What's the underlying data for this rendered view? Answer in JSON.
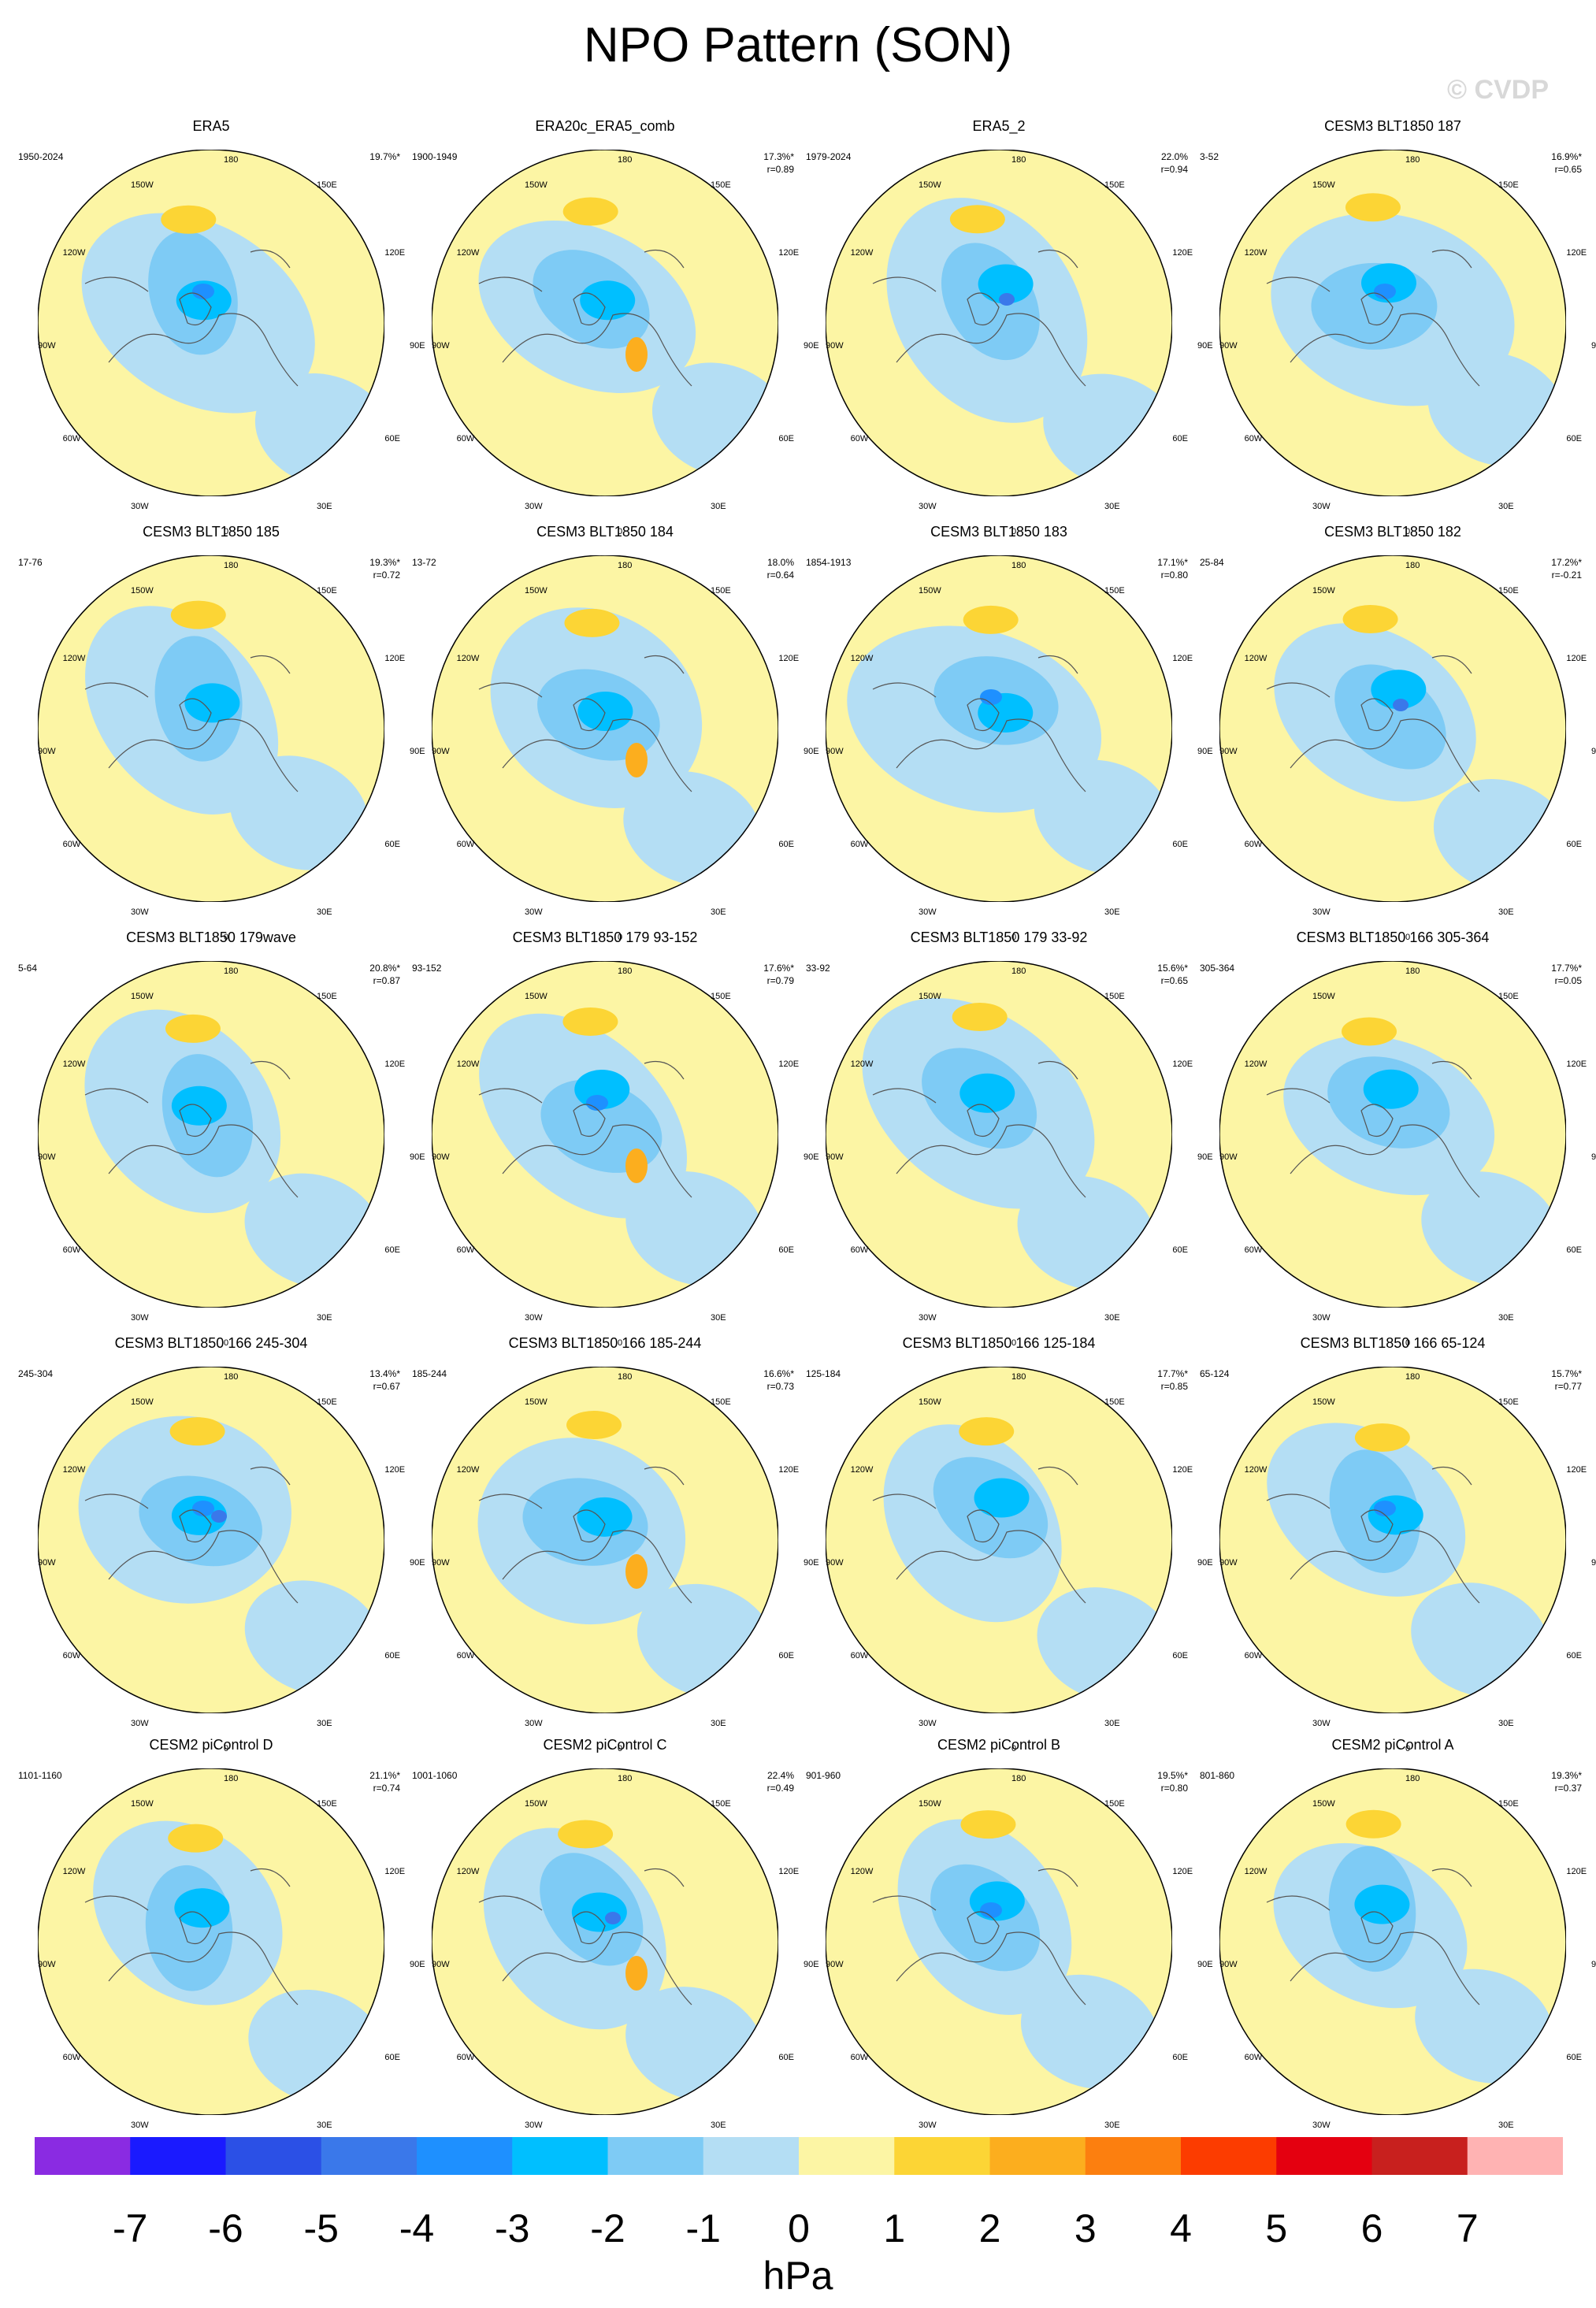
{
  "title": "NPO Pattern (SON)",
  "watermark": "© CVDP",
  "lon_labels": [
    "180",
    "150W",
    "150E",
    "120W",
    "120E",
    "90W",
    "90E",
    "60W",
    "60E",
    "30W",
    "30E",
    "0"
  ],
  "colorbar": {
    "colors": [
      "#8a2be2",
      "#1a1aff",
      "#2b50e6",
      "#3a78ea",
      "#1e90ff",
      "#00bfff",
      "#7ecbf5",
      "#b4def4",
      "#fcf5a4",
      "#fcd535",
      "#fcae1e",
      "#fc7f0f",
      "#fc3c00",
      "#e40010",
      "#c8201e",
      "#ffb3b3"
    ],
    "labels": [
      "-7",
      "-6",
      "-5",
      "-4",
      "-3",
      "-2",
      "-1",
      "0",
      "1",
      "2",
      "3",
      "4",
      "5",
      "6",
      "7"
    ],
    "units": "hPa"
  },
  "chart_data": {
    "type": "heatmap",
    "title": "NPO Pattern (SON)",
    "season": "SON",
    "units": "hPa",
    "levels": [
      -7,
      -6,
      -5,
      -4,
      -3,
      -2,
      -1,
      0,
      1,
      2,
      3,
      4,
      5,
      6,
      7
    ],
    "projection": "north polar stereographic",
    "panels": [
      {
        "name": "ERA5",
        "years": "1950-2024",
        "pct": "19.7%*",
        "r": ""
      },
      {
        "name": "ERA20c_ERA5_comb",
        "years": "1900-1949",
        "pct": "17.3%*",
        "r": "r=0.89"
      },
      {
        "name": "ERA5_2",
        "years": "1979-2024",
        "pct": "22.0%",
        "r": "r=0.94"
      },
      {
        "name": "CESM3 BLT1850 187",
        "years": "3-52",
        "pct": "16.9%*",
        "r": "r=0.65"
      },
      {
        "name": "CESM3 BLT1850 185",
        "years": "17-76",
        "pct": "19.3%*",
        "r": "r=0.72"
      },
      {
        "name": "CESM3 BLT1850 184",
        "years": "13-72",
        "pct": "18.0%",
        "r": "r=0.64"
      },
      {
        "name": "CESM3 BLT1850 183",
        "years": "1854-1913",
        "pct": "17.1%*",
        "r": "r=0.80"
      },
      {
        "name": "CESM3 BLT1850 182",
        "years": "25-84",
        "pct": "17.2%*",
        "r": "r=-0.21"
      },
      {
        "name": "CESM3 BLT1850 179wave",
        "years": "5-64",
        "pct": "20.8%*",
        "r": "r=0.87"
      },
      {
        "name": "CESM3 BLT1850 179 93-152",
        "years": "93-152",
        "pct": "17.6%*",
        "r": "r=0.79"
      },
      {
        "name": "CESM3 BLT1850 179 33-92",
        "years": "33-92",
        "pct": "15.6%*",
        "r": "r=0.65"
      },
      {
        "name": "CESM3 BLT1850 166 305-364",
        "years": "305-364",
        "pct": "17.7%*",
        "r": "r=0.05"
      },
      {
        "name": "CESM3 BLT1850 166 245-304",
        "years": "245-304",
        "pct": "13.4%*",
        "r": "r=0.67"
      },
      {
        "name": "CESM3 BLT1850 166 185-244",
        "years": "185-244",
        "pct": "16.6%*",
        "r": "r=0.73"
      },
      {
        "name": "CESM3 BLT1850 166 125-184",
        "years": "125-184",
        "pct": "17.7%*",
        "r": "r=0.85"
      },
      {
        "name": "CESM3 BLT1850 166 65-124",
        "years": "65-124",
        "pct": "15.7%*",
        "r": "r=0.77"
      },
      {
        "name": "CESM2 piControl D",
        "years": "1101-1160",
        "pct": "21.1%*",
        "r": "r=0.74"
      },
      {
        "name": "CESM2 piControl C",
        "years": "1001-1060",
        "pct": "22.4%",
        "r": "r=0.49"
      },
      {
        "name": "CESM2 piControl B",
        "years": "901-960",
        "pct": "19.5%*",
        "r": "r=0.80"
      },
      {
        "name": "CESM2 piControl A",
        "years": "801-860",
        "pct": "19.3%*",
        "r": "r=0.37"
      }
    ]
  }
}
